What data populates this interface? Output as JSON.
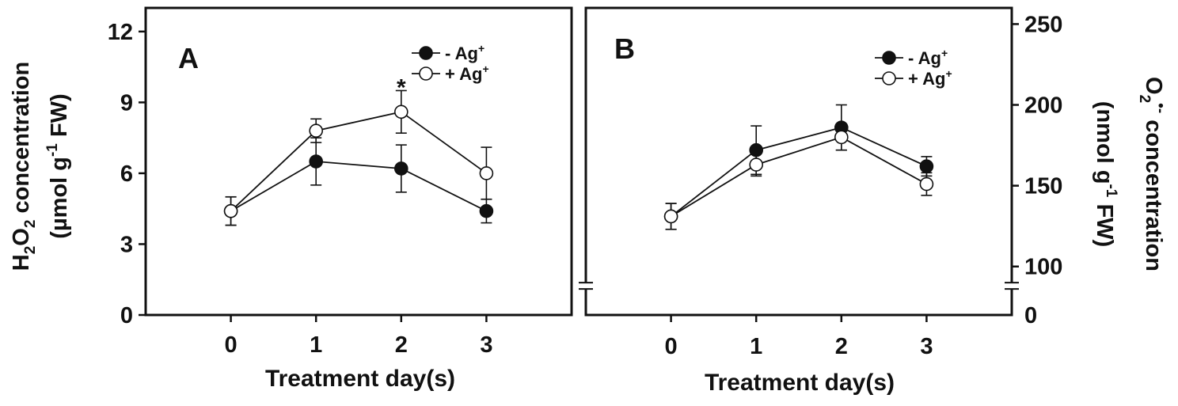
{
  "chart_data": [
    {
      "type": "line",
      "panel_label": "A",
      "title": "",
      "xlabel": "Treatment day(s)",
      "ylabel": {
        "line1": {
          "pre": "H",
          "sub1": "2",
          "mid": "O",
          "sub2": "2",
          "post": " concentration"
        },
        "line2": {
          "pre": "(µmol g",
          "sup": "-1",
          "post": " FW)"
        }
      },
      "x": [
        0,
        1,
        2,
        3
      ],
      "xlim": [
        -1,
        4
      ],
      "ylim": [
        0,
        13
      ],
      "yticks": [
        0,
        3,
        6,
        9,
        12
      ],
      "y_axis_side": "left",
      "axis_break": false,
      "series": [
        {
          "name": "-  Ag",
          "sup": "+",
          "marker": "filled",
          "values": [
            4.4,
            6.5,
            6.2,
            4.4
          ],
          "errors": [
            0.6,
            1.0,
            1.0,
            0.5
          ]
        },
        {
          "name": "+ Ag",
          "sup": "+",
          "marker": "open",
          "values": [
            4.4,
            7.8,
            8.6,
            6.0
          ],
          "errors": [
            0.6,
            0.5,
            0.9,
            1.1
          ]
        }
      ],
      "annotations": [
        {
          "text": "*",
          "x": 2,
          "y": 9.3
        }
      ]
    },
    {
      "type": "line",
      "panel_label": "B",
      "title": "",
      "xlabel": "Treatment day(s)",
      "ylabel": {
        "line1": {
          "pre": "O",
          "sub1": "2",
          "sup": "•-",
          "post": " concentration"
        },
        "line2": {
          "pre": "(nmol g",
          "sup": "-1",
          "post": " FW)"
        }
      },
      "x": [
        0,
        1,
        2,
        3
      ],
      "xlim": [
        -1,
        4
      ],
      "ylim": [
        70,
        260
      ],
      "yticks": [
        100,
        150,
        200,
        250
      ],
      "ytick_zero": "0",
      "y_axis_side": "right",
      "axis_break": true,
      "series": [
        {
          "name": "-  Ag",
          "sup": "+",
          "marker": "filled",
          "values": [
            131,
            172,
            186,
            162
          ],
          "errors": [
            8,
            15,
            14,
            6
          ]
        },
        {
          "name": "+ Ag",
          "sup": "+",
          "marker": "open",
          "values": [
            131,
            163,
            180,
            151
          ],
          "errors": [
            8,
            7,
            8,
            7
          ]
        }
      ],
      "annotations": []
    }
  ]
}
